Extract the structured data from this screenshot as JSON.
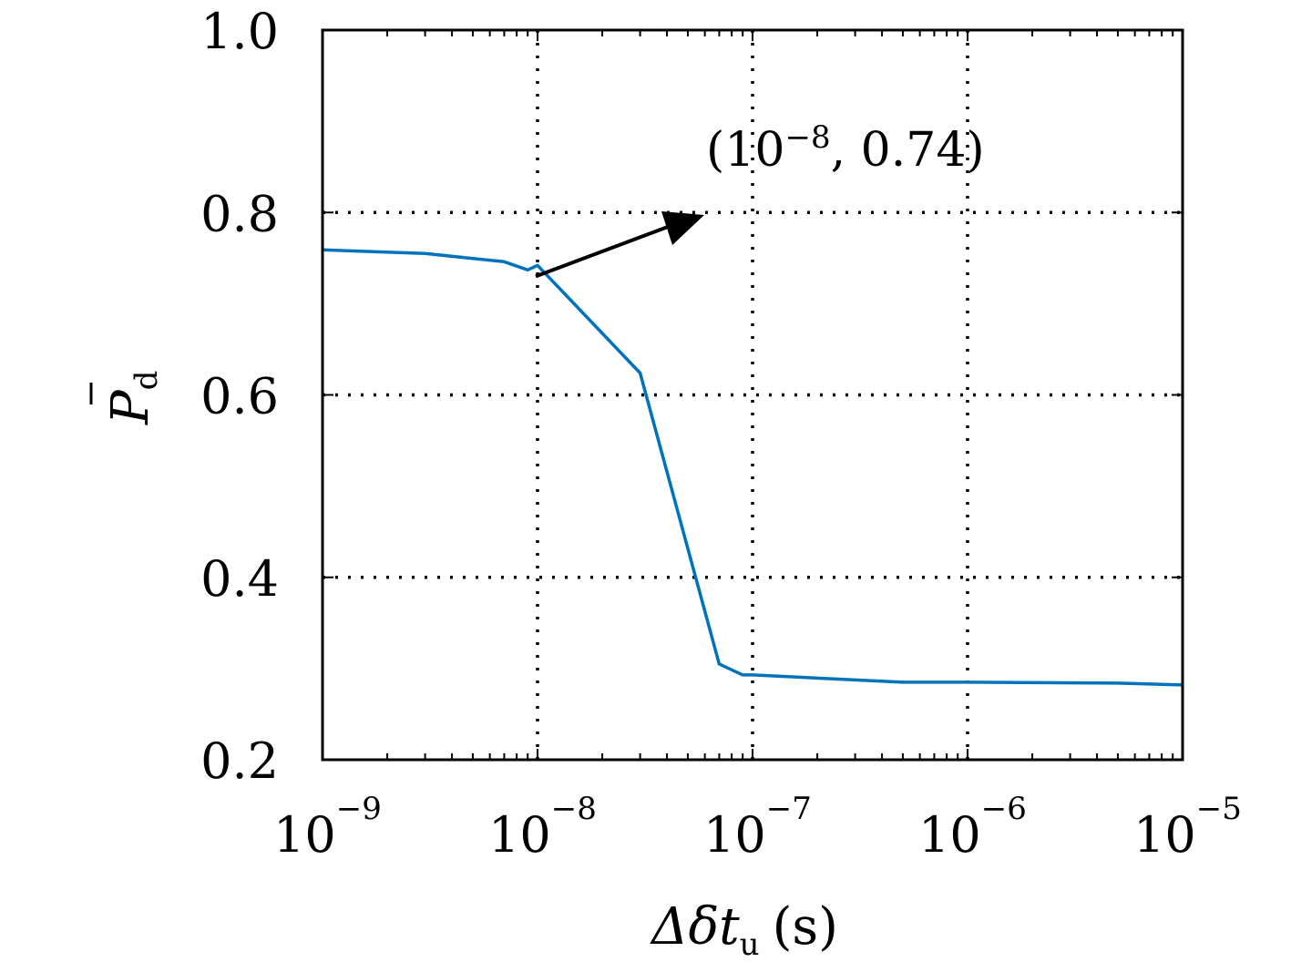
{
  "chart_data": {
    "type": "line",
    "x_scale": "log",
    "xlim": [
      1e-09,
      1e-05
    ],
    "ylim": [
      0.2,
      1.0
    ],
    "grid": true,
    "xlabel": "Δδt",
    "xlabel_subscript": "u",
    "xlabel_unit": "(s)",
    "ylabel": "P",
    "ylabel_subscript": "d",
    "x_ticks": [
      {
        "base": "10",
        "exp": "−9",
        "value": 1e-09
      },
      {
        "base": "10",
        "exp": "−8",
        "value": 1e-08
      },
      {
        "base": "10",
        "exp": "−7",
        "value": 1e-07
      },
      {
        "base": "10",
        "exp": "−6",
        "value": 1e-06
      },
      {
        "base": "10",
        "exp": "−5",
        "value": 1e-05
      }
    ],
    "y_ticks": [
      "0.2",
      "0.4",
      "0.6",
      "0.8",
      "1.0"
    ],
    "series": [
      {
        "color": "#0072BD",
        "x": [
          1e-09,
          3e-09,
          7e-09,
          9e-09,
          1e-08,
          3e-08,
          7e-08,
          9e-08,
          1e-07,
          5e-07,
          1e-06,
          5e-06,
          1e-05
        ],
        "y": [
          0.759,
          0.755,
          0.746,
          0.737,
          0.742,
          0.624,
          0.305,
          0.293,
          0.293,
          0.285,
          0.285,
          0.284,
          0.282
        ]
      }
    ],
    "annotation": {
      "text_prefix": "(10",
      "text_exp": "−8",
      "text_suffix": ", 0.74)",
      "point": [
        1e-08,
        0.74
      ]
    }
  }
}
